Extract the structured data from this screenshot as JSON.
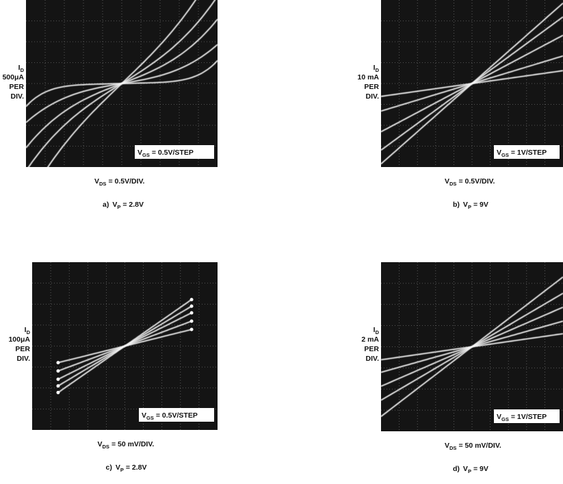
{
  "panels": [
    {
      "y_label": {
        "symbol": "I",
        "subscript": "D",
        "lines": [
          "500μA",
          "PER",
          "DIV."
        ]
      },
      "step_label": {
        "symbol": "V",
        "subscript": "GS",
        "text": "= 0.5V/STEP"
      },
      "x_label": {
        "symbol": "V",
        "subscript": "DS",
        "text": "= 0.5V/DIV."
      },
      "caption": {
        "prefix": "a)",
        "symbol": "V",
        "subscript": "P",
        "text": "= 2.8V"
      }
    },
    {
      "y_label": {
        "symbol": "I",
        "subscript": "D",
        "lines": [
          "10 mA",
          "PER",
          "DIV."
        ]
      },
      "step_label": {
        "symbol": "V",
        "subscript": "GS",
        "text": "= 1V/STEP"
      },
      "x_label": {
        "symbol": "V",
        "subscript": "DS",
        "text": "= 0.5V/DIV."
      },
      "caption": {
        "prefix": "b)",
        "symbol": "V",
        "subscript": "P",
        "text": "= 9V"
      }
    },
    {
      "y_label": {
        "symbol": "I",
        "subscript": "D",
        "lines": [
          "100μA",
          "PER",
          "DIV."
        ]
      },
      "step_label": {
        "symbol": "V",
        "subscript": "GS",
        "text": "= 0.5V/STEP"
      },
      "x_label": {
        "symbol": "V",
        "subscript": "DS",
        "text": "= 50 mV/DIV."
      },
      "caption": {
        "prefix": "c)",
        "symbol": "V",
        "subscript": "P",
        "text": "= 2.8V"
      }
    },
    {
      "y_label": {
        "symbol": "I",
        "subscript": "D",
        "lines": [
          "2 mA",
          "PER",
          "DIV."
        ]
      },
      "step_label": {
        "symbol": "V",
        "subscript": "GS",
        "text": "= 1V/STEP"
      },
      "x_label": {
        "symbol": "V",
        "subscript": "DS",
        "text": "= 50 mV/DIV."
      },
      "caption": {
        "prefix": "d)",
        "symbol": "V",
        "subscript": "P",
        "text": "= 9V"
      }
    }
  ]
}
